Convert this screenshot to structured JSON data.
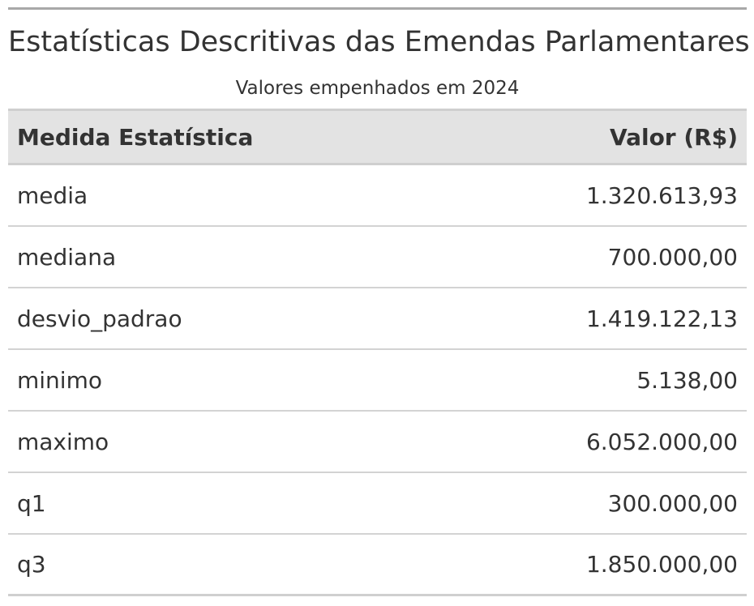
{
  "table": {
    "title": "Estatísticas Descritivas das Emendas Parlamentares",
    "subtitle": "Valores empenhados em 2024",
    "columns": [
      "Medida Estatística",
      "Valor (R$)"
    ],
    "rows": [
      {
        "measure": "media",
        "value": "1.320.613,93"
      },
      {
        "measure": "mediana",
        "value": "700.000,00"
      },
      {
        "measure": "desvio_padrao",
        "value": "1.419.122,13"
      },
      {
        "measure": "minimo",
        "value": "5.138,00"
      },
      {
        "measure": "maximo",
        "value": "6.052.000,00"
      },
      {
        "measure": "q1",
        "value": "300.000,00"
      },
      {
        "measure": "q3",
        "value": "1.850.000,00"
      }
    ]
  }
}
